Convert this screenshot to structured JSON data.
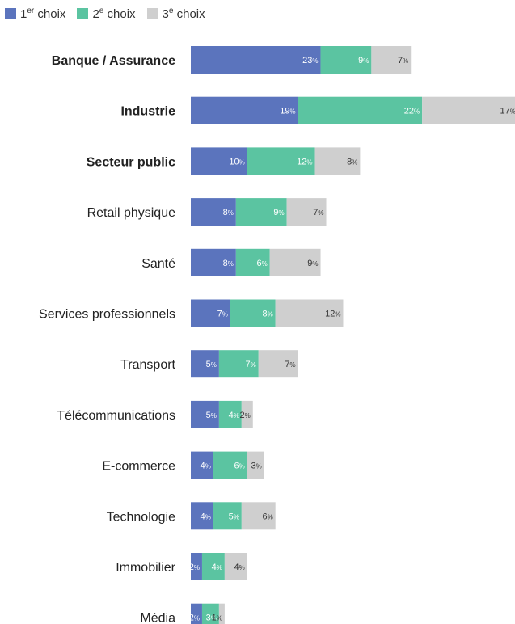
{
  "chart_data": {
    "type": "bar",
    "orientation": "horizontal",
    "stacked": true,
    "categories": [
      "Banque / Assurance",
      "Industrie",
      "Secteur public",
      "Retail physique",
      "Santé",
      "Services professionnels",
      "Transport",
      "Télécommunications",
      "E-commerce",
      "Technologie",
      "Immobilier",
      "Média"
    ],
    "bold_categories": [
      "Banque / Assurance",
      "Industrie",
      "Secteur public"
    ],
    "series": [
      {
        "name": "1er choix",
        "color": "#5b74bd",
        "label_color": "#ffffff",
        "values": [
          23,
          19,
          10,
          8,
          8,
          7,
          5,
          5,
          4,
          4,
          2,
          2
        ]
      },
      {
        "name": "2e choix",
        "color": "#5bc4a1",
        "label_color": "#ffffff",
        "values": [
          9,
          22,
          12,
          9,
          6,
          8,
          7,
          4,
          6,
          5,
          4,
          3
        ]
      },
      {
        "name": "3e choix",
        "color": "#cfcfcf",
        "label_color": "#333333",
        "values": [
          7,
          17,
          8,
          7,
          9,
          12,
          7,
          2,
          3,
          6,
          4,
          1
        ]
      }
    ],
    "value_suffix": "%",
    "xlim": [
      0,
      58
    ],
    "grid": false,
    "legend_position": "top-left"
  }
}
